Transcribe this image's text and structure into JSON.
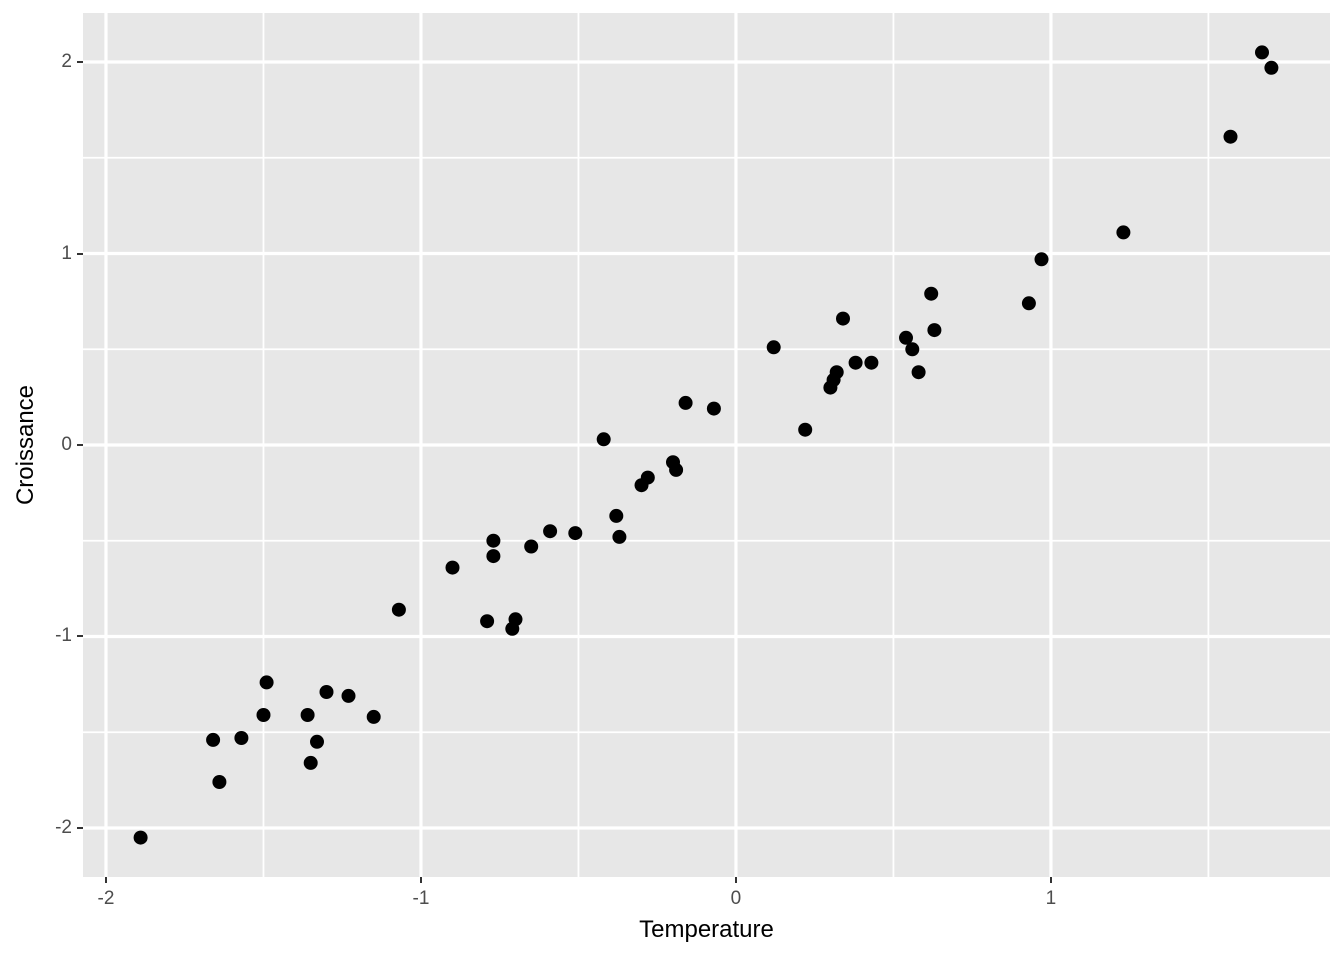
{
  "figure": {
    "background_color": "#FFFFFF",
    "panel_background_color": "#E7E7E7",
    "grid_color": "#FFFFFF",
    "point_color": "#000000",
    "tick_color": "#333333",
    "tick_label_color": "#4D4D4D",
    "axis_title_color": "#000000"
  },
  "chart_data": {
    "type": "scatter",
    "title": "",
    "xlabel": "Temperature",
    "ylabel": "Croissance",
    "xlim": [
      -2.073,
      1.886
    ],
    "ylim": [
      -2.256,
      2.256
    ],
    "x_major_ticks": [
      -2,
      -1,
      0,
      1
    ],
    "x_minor_ticks": [
      -1.5,
      -0.5,
      0.5,
      1.5
    ],
    "y_major_ticks": [
      -2,
      -1,
      0,
      1,
      2
    ],
    "y_minor_ticks": [
      -1.5,
      -0.5,
      0.5,
      1.5
    ],
    "grid": true,
    "legend_position": "none",
    "point_radius": 7,
    "points": [
      [
        -1.89,
        -2.05
      ],
      [
        -1.64,
        -1.76
      ],
      [
        -1.66,
        -1.54
      ],
      [
        -1.57,
        -1.53
      ],
      [
        -1.5,
        -1.41
      ],
      [
        -1.49,
        -1.24
      ],
      [
        -1.36,
        -1.41
      ],
      [
        -1.35,
        -1.66
      ],
      [
        -1.33,
        -1.55
      ],
      [
        -1.3,
        -1.29
      ],
      [
        -1.23,
        -1.31
      ],
      [
        -1.15,
        -1.42
      ],
      [
        -1.07,
        -0.86
      ],
      [
        -0.9,
        -0.64
      ],
      [
        -0.79,
        -0.92
      ],
      [
        -0.77,
        -0.5
      ],
      [
        -0.77,
        -0.58
      ],
      [
        -0.71,
        -0.96
      ],
      [
        -0.7,
        -0.91
      ],
      [
        -0.65,
        -0.53
      ],
      [
        -0.59,
        -0.45
      ],
      [
        -0.51,
        -0.46
      ],
      [
        -0.42,
        0.03
      ],
      [
        -0.38,
        -0.37
      ],
      [
        -0.37,
        -0.48
      ],
      [
        -0.3,
        -0.21
      ],
      [
        -0.28,
        -0.17
      ],
      [
        -0.2,
        -0.09
      ],
      [
        -0.19,
        -0.13
      ],
      [
        -0.16,
        0.22
      ],
      [
        -0.07,
        0.19
      ],
      [
        0.12,
        0.51
      ],
      [
        0.22,
        0.08
      ],
      [
        0.3,
        0.3
      ],
      [
        0.31,
        0.34
      ],
      [
        0.32,
        0.38
      ],
      [
        0.34,
        0.66
      ],
      [
        0.38,
        0.43
      ],
      [
        0.43,
        0.43
      ],
      [
        0.54,
        0.56
      ],
      [
        0.56,
        0.5
      ],
      [
        0.58,
        0.38
      ],
      [
        0.62,
        0.79
      ],
      [
        0.63,
        0.6
      ],
      [
        0.93,
        0.74
      ],
      [
        0.97,
        0.97
      ],
      [
        1.23,
        1.11
      ],
      [
        1.57,
        1.61
      ],
      [
        1.67,
        2.05
      ],
      [
        1.7,
        1.97
      ]
    ]
  }
}
